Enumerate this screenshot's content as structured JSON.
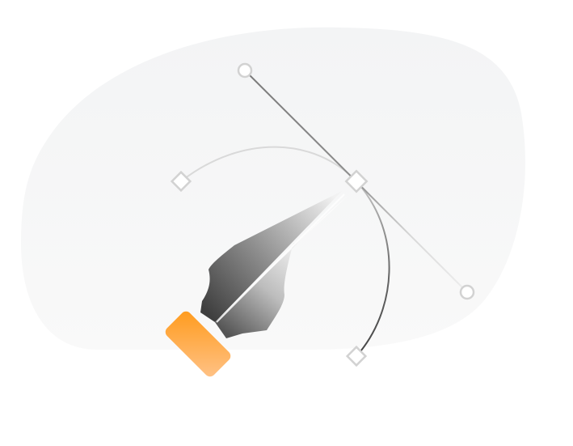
{
  "illustration": {
    "subject": "pen-tool",
    "colors": {
      "background": "#ffffff",
      "blob_top": "#f3f4f5",
      "blob_bottom": "#f8f8f8",
      "curve_light": "#d9d9d9",
      "curve_dark": "#555555",
      "handle_line_dark": "#8a8a8a",
      "handle_line_light": "#e0e0e0",
      "anchor_stroke": "#d2d2d2",
      "anchor_fill": "#ffffff",
      "nib_dark": "#4a4a4a",
      "nib_light": "#ffffff",
      "grip_orange": "#ff9d1f",
      "grip_orange_light": "#ffc07a"
    },
    "icons": [
      "pen-nib-icon",
      "anchor-point-icon",
      "control-handle-icon"
    ]
  }
}
